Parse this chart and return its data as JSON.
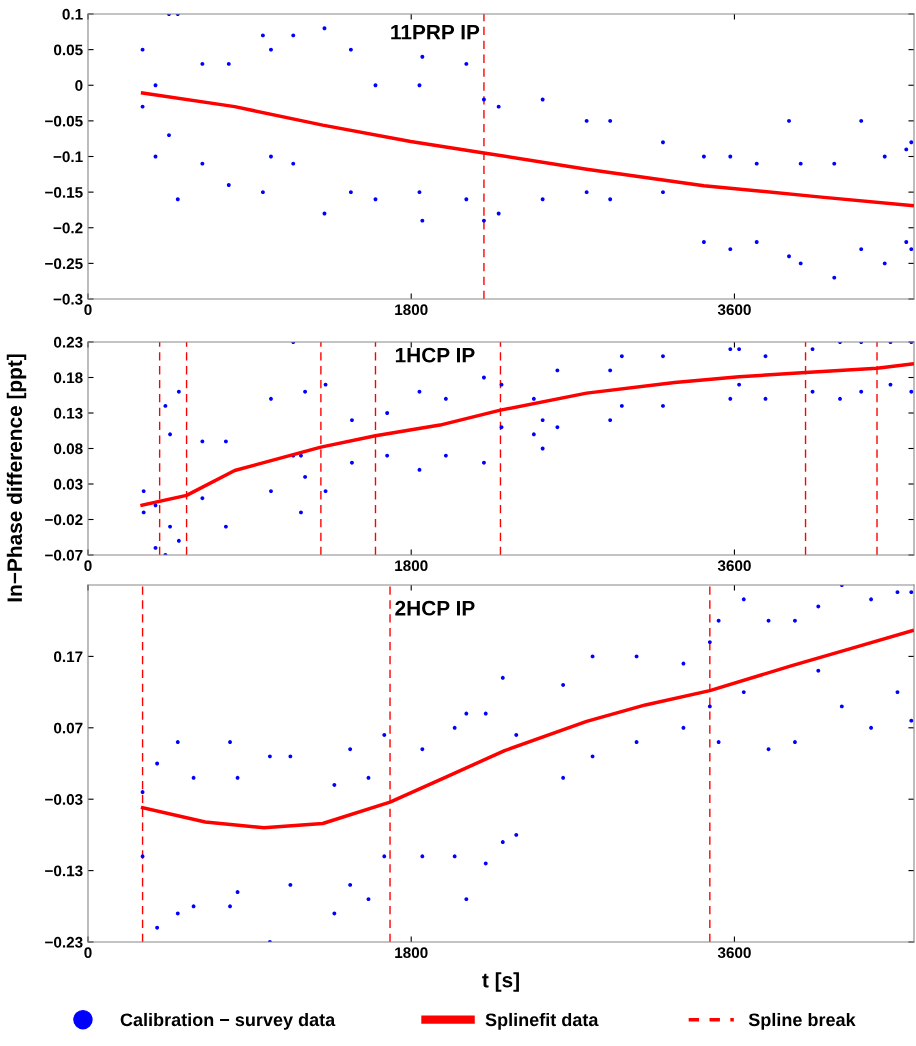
{
  "chart_data": [
    {
      "type": "scatter",
      "title": "11PRP IP",
      "xlim": [
        0,
        4600
      ],
      "xticks": [
        0,
        1800,
        3600
      ],
      "ylim": [
        -0.3,
        0.1
      ],
      "yticks": [
        -0.3,
        -0.25,
        -0.2,
        -0.15,
        -0.1,
        -0.05,
        0,
        0.05,
        0.1
      ],
      "series": [
        {
          "marker": "circle",
          "color": "#0000ff",
          "x": [
            304,
            304,
            376,
            376,
            451,
            451,
            500,
            500,
            637,
            637,
            784,
            784,
            974,
            974,
            1019,
            1019,
            1143,
            1143,
            1317,
            1317,
            1464,
            1464,
            1601,
            1601,
            1846,
            1846,
            1862,
            1862,
            2107,
            2107,
            2205,
            2205,
            2287,
            2287,
            2532,
            2532,
            2777,
            2777,
            2908,
            2908,
            3202,
            3202,
            3430,
            3430,
            3577,
            3577,
            3724,
            3724,
            3904,
            3904,
            3969,
            3969,
            4156,
            4156,
            4306,
            4306,
            4437,
            4437,
            4557,
            4557,
            4585,
            4585
          ],
          "values": [
            0.05,
            -0.03,
            0.0,
            -0.1,
            0.1,
            -0.07,
            0.1,
            -0.16,
            0.03,
            -0.11,
            0.03,
            -0.14,
            0.07,
            -0.15,
            0.05,
            -0.1,
            0.07,
            -0.11,
            0.08,
            -0.18,
            0.05,
            -0.15,
            0.0,
            -0.16,
            0.0,
            -0.15,
            0.04,
            -0.19,
            0.03,
            -0.16,
            -0.02,
            -0.19,
            -0.03,
            -0.18,
            -0.02,
            -0.16,
            -0.05,
            -0.15,
            -0.05,
            -0.16,
            -0.08,
            -0.15,
            -0.1,
            -0.22,
            -0.1,
            -0.23,
            -0.11,
            -0.22,
            -0.05,
            -0.24,
            -0.11,
            -0.25,
            -0.11,
            -0.27,
            -0.05,
            -0.23,
            -0.1,
            -0.25,
            -0.09,
            -0.22,
            -0.08,
            -0.23
          ]
        },
        {
          "type": "line",
          "color": "#ff0000",
          "x": [
            304,
            817,
            1307,
            1797,
            2205,
            2777,
            3430,
            4084,
            4590
          ],
          "values": [
            -0.011,
            -0.03,
            -0.056,
            -0.079,
            -0.095,
            -0.118,
            -0.141,
            -0.157,
            -0.169
          ]
        }
      ],
      "ref_lines": [
        {
          "axis": "x",
          "value": 2205,
          "color": "#ff0000",
          "line_style": "dashed"
        }
      ]
    },
    {
      "type": "scatter",
      "title": "1HCP IP",
      "ylabel": "In−Phase difference [ppt]",
      "xlim": [
        0,
        4600
      ],
      "xticks": [
        0,
        1800,
        3600
      ],
      "ylim": [
        -0.07,
        0.23
      ],
      "yticks": [
        -0.07,
        -0.02,
        0.03,
        0.08,
        0.13,
        0.18,
        0.23
      ],
      "series": [
        {
          "marker": "circle",
          "color": "#0000ff",
          "x": [
            310,
            310,
            376,
            376,
            431,
            431,
            457,
            457,
            506,
            506,
            637,
            637,
            768,
            768,
            1019,
            1019,
            1143,
            1143,
            1186,
            1186,
            1209,
            1209,
            1323,
            1323,
            1470,
            1470,
            1666,
            1666,
            1846,
            1846,
            1993,
            1993,
            2205,
            2205,
            2303,
            2303,
            2483,
            2483,
            2532,
            2532,
            2614,
            2614,
            2908,
            2908,
            2973,
            2973,
            3202,
            3202,
            3577,
            3577,
            3626,
            3626,
            3773,
            3773,
            4035,
            4035,
            4188,
            4188,
            4306,
            4306,
            4469,
            4469,
            4585,
            4585
          ],
          "values": [
            0.02,
            -0.01,
            0.0,
            -0.06,
            0.14,
            -0.07,
            0.1,
            -0.03,
            0.16,
            -0.05,
            0.09,
            0.01,
            0.09,
            -0.03,
            0.15,
            0.02,
            0.23,
            0.07,
            0.07,
            -0.01,
            0.16,
            0.04,
            0.17,
            0.02,
            0.12,
            0.06,
            0.13,
            0.07,
            0.16,
            0.05,
            0.15,
            0.07,
            0.18,
            0.06,
            0.17,
            0.11,
            0.15,
            0.1,
            0.12,
            0.08,
            0.19,
            0.11,
            0.19,
            0.12,
            0.21,
            0.14,
            0.21,
            0.14,
            0.22,
            0.15,
            0.22,
            0.17,
            0.21,
            0.15,
            0.22,
            0.16,
            0.23,
            0.15,
            0.23,
            0.16,
            0.23,
            0.17,
            0.23,
            0.16
          ]
        },
        {
          "type": "line",
          "color": "#ff0000",
          "x": [
            301,
            549,
            817,
            1297,
            1601,
            1960,
            2297,
            2777,
            3267,
            3626,
            3996,
            4394,
            4590
          ],
          "values": [
            0.0,
            0.014,
            0.049,
            0.082,
            0.098,
            0.113,
            0.134,
            0.158,
            0.173,
            0.181,
            0.187,
            0.193,
            0.199
          ]
        }
      ],
      "ref_lines": [
        {
          "axis": "x",
          "value": 399,
          "color": "#ff0000",
          "line_style": "dashed"
        },
        {
          "axis": "x",
          "value": 549,
          "color": "#ff0000",
          "line_style": "dashed"
        },
        {
          "axis": "x",
          "value": 1297,
          "color": "#ff0000",
          "line_style": "dashed"
        },
        {
          "axis": "x",
          "value": 1601,
          "color": "#ff0000",
          "line_style": "dashed"
        },
        {
          "axis": "x",
          "value": 2297,
          "color": "#ff0000",
          "line_style": "dashed"
        },
        {
          "axis": "x",
          "value": 3996,
          "color": "#ff0000",
          "line_style": "dashed"
        },
        {
          "axis": "x",
          "value": 4394,
          "color": "#ff0000",
          "line_style": "dashed"
        }
      ]
    },
    {
      "type": "scatter",
      "title": "2HCP IP",
      "xlabel": "t [s]",
      "xlim": [
        0,
        4600
      ],
      "xticks": [
        0,
        1800,
        3600
      ],
      "ylim": [
        -0.23,
        0.27
      ],
      "yticks": [
        -0.23,
        -0.13,
        -0.03,
        0.07,
        0.17
      ],
      "legend": "bottom",
      "series": [
        {
          "name": "Calibration − survey data",
          "marker": "circle",
          "color": "#0000ff",
          "x": [
            304,
            304,
            385,
            385,
            500,
            500,
            588,
            588,
            791,
            791,
            833,
            833,
            1013,
            1013,
            1127,
            1127,
            1372,
            1372,
            1460,
            1460,
            1562,
            1562,
            1650,
            1650,
            1862,
            1862,
            2042,
            2042,
            2107,
            2107,
            2215,
            2215,
            2310,
            2310,
            2385,
            2385,
            2646,
            2646,
            2810,
            2810,
            3055,
            3055,
            3316,
            3316,
            3463,
            3463,
            3512,
            3512,
            3652,
            3652,
            3790,
            3790,
            3937,
            3937,
            4067,
            4067,
            4198,
            4198,
            4361,
            4361,
            4508,
            4508,
            4585,
            4585
          ],
          "values": [
            -0.02,
            -0.11,
            0.02,
            -0.21,
            0.05,
            -0.19,
            0.0,
            -0.18,
            0.05,
            -0.18,
            0.0,
            -0.16,
            0.03,
            -0.23,
            0.03,
            -0.15,
            -0.01,
            -0.19,
            0.04,
            -0.15,
            0.0,
            -0.17,
            0.06,
            -0.11,
            0.04,
            -0.11,
            0.07,
            -0.11,
            0.09,
            -0.17,
            0.09,
            -0.12,
            0.14,
            -0.09,
            0.06,
            -0.08,
            0.13,
            0.0,
            0.17,
            0.03,
            0.17,
            0.05,
            0.16,
            0.07,
            0.19,
            0.1,
            0.22,
            0.05,
            0.25,
            0.12,
            0.22,
            0.04,
            0.22,
            0.05,
            0.24,
            0.15,
            0.27,
            0.1,
            0.25,
            0.07,
            0.26,
            0.12,
            0.26,
            0.08
          ]
        },
        {
          "name": "Splinefit data",
          "type": "line",
          "color": "#ff0000",
          "x": [
            304,
            653,
            980,
            1307,
            1682,
            1993,
            2320,
            2777,
            3104,
            3463,
            3920,
            4247,
            4590
          ],
          "values": [
            -0.042,
            -0.062,
            -0.07,
            -0.064,
            -0.034,
            0.001,
            0.038,
            0.079,
            0.102,
            0.122,
            0.157,
            0.181,
            0.206
          ]
        }
      ],
      "ref_lines": [
        {
          "axis": "x",
          "value": 304,
          "label": "Spline break",
          "color": "#ff0000",
          "line_style": "dashed"
        },
        {
          "axis": "x",
          "value": 1682,
          "color": "#ff0000",
          "line_style": "dashed"
        },
        {
          "axis": "x",
          "value": 3463,
          "color": "#ff0000",
          "line_style": "dashed"
        }
      ]
    }
  ]
}
